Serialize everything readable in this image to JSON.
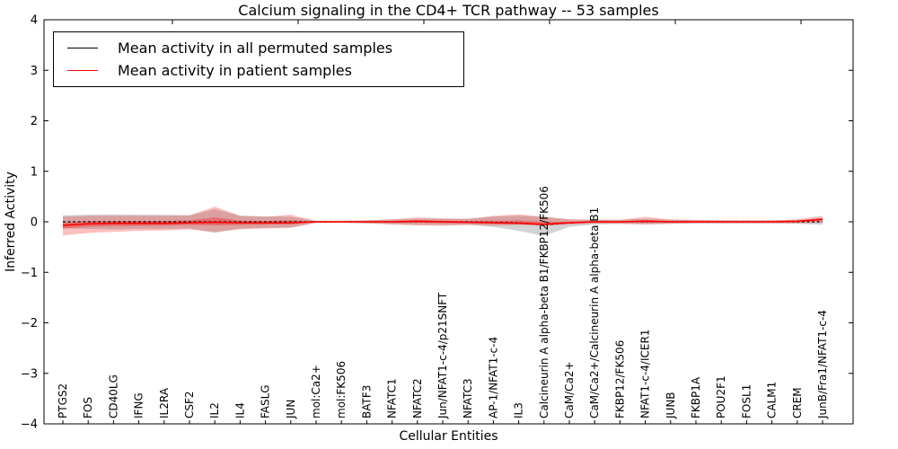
{
  "title": "Calcium signaling in the CD4+ TCR pathway -- 53 samples",
  "axes": {
    "y_label": "Inferred Activity",
    "x_label": "Cellular Entities",
    "y_ticks": [
      "4",
      "3",
      "2",
      "1",
      "0",
      "−1",
      "−2",
      "−3",
      "−4"
    ],
    "y_tick_values": [
      4,
      3,
      2,
      1,
      0,
      -1,
      -2,
      -3,
      -4
    ]
  },
  "legend": {
    "entries": [
      {
        "label": "Mean activity in all permuted samples",
        "color": "#000000"
      },
      {
        "label": "Mean activity in patient samples",
        "color": "#ff0000"
      }
    ]
  },
  "chart_data": {
    "type": "line",
    "title": "Calcium signaling in the CD4+ TCR pathway -- 53 samples",
    "xlabel": "Cellular Entities",
    "ylabel": "Inferred Activity",
    "ylim": [
      -4,
      4
    ],
    "grid": false,
    "legend_position": "upper left",
    "categories": [
      "PTGS2",
      "FOS",
      "CD40LG",
      "IFNG",
      "IL2RA",
      "CSF2",
      "IL2",
      "IL4",
      "FASLG",
      "JUN",
      "mol:Ca2+",
      "mol:FK506",
      "BATF3",
      "NFATC1",
      "NFATC2",
      "Jun/NFAT1-c-4/p21SNFT",
      "NFATC3",
      "AP-1/NFAT1-c-4",
      "IL3",
      "Calcineurin A alpha-beta B1/FKBP12/FK506",
      "CaM/Ca2+",
      "CaM/Ca2+/Calcineurin A alpha-beta B1",
      "FKBP12/FK506",
      "NFAT1-c-4/ICER1",
      "JUNB",
      "FKBP1A",
      "POU2F1",
      "FOSL1",
      "CALM1",
      "CREM",
      "JunB/Fra1/NFAT1-c-4"
    ],
    "series": [
      {
        "name": "Mean activity in all permuted samples",
        "color": "#000000",
        "style": "dashed",
        "values": [
          0,
          0,
          0,
          0,
          0,
          0,
          0,
          0,
          0,
          0,
          0,
          0,
          0,
          0,
          0,
          0,
          0,
          -0.01,
          -0.02,
          -0.06,
          -0.02,
          0,
          0,
          0,
          0,
          0,
          0,
          0,
          0,
          0,
          0
        ]
      },
      {
        "name": "Mean activity in patient samples",
        "color": "#ff0000",
        "style": "solid",
        "values": [
          -0.07,
          -0.04,
          -0.03,
          -0.03,
          -0.03,
          -0.02,
          -0.01,
          -0.02,
          -0.02,
          -0.02,
          0,
          0,
          0,
          0,
          0.01,
          0,
          -0.01,
          -0.02,
          -0.03,
          -0.05,
          -0.02,
          0,
          0,
          0.01,
          0,
          0,
          0,
          0,
          0,
          0.01,
          0.05
        ]
      }
    ],
    "bands": [
      {
        "name": "permuted-samples-range",
        "color": "#9e9e9e",
        "opacity": 0.45,
        "upper": [
          0.13,
          0.14,
          0.15,
          0.14,
          0.14,
          0.13,
          0.25,
          0.12,
          0.11,
          0.1,
          0.02,
          0.02,
          0.03,
          0.05,
          0.06,
          0.06,
          0.06,
          0.1,
          0.12,
          0.1,
          0.05,
          0.04,
          0.04,
          0.06,
          0.04,
          0.03,
          0.03,
          0.03,
          0.03,
          0.04,
          0.06
        ],
        "lower": [
          -0.13,
          -0.14,
          -0.15,
          -0.14,
          -0.14,
          -0.13,
          -0.22,
          -0.13,
          -0.12,
          -0.11,
          -0.02,
          -0.02,
          -0.03,
          -0.05,
          -0.06,
          -0.06,
          -0.06,
          -0.1,
          -0.18,
          -0.28,
          -0.1,
          -0.05,
          -0.04,
          -0.05,
          -0.04,
          -0.03,
          -0.03,
          -0.03,
          -0.03,
          -0.04,
          -0.06
        ]
      },
      {
        "name": "patient-samples-range",
        "color": "#f03030",
        "opacity": 0.3,
        "upper": [
          0.1,
          0.12,
          0.12,
          0.12,
          0.12,
          0.13,
          0.3,
          0.12,
          0.1,
          0.14,
          0.02,
          0.02,
          0.03,
          0.05,
          0.09,
          0.07,
          0.06,
          0.12,
          0.15,
          0.1,
          0.05,
          0.04,
          0.04,
          0.1,
          0.05,
          0.04,
          0.03,
          0.03,
          0.03,
          0.05,
          0.12
        ],
        "lower": [
          -0.27,
          -0.22,
          -0.2,
          -0.18,
          -0.17,
          -0.15,
          -0.2,
          -0.15,
          -0.13,
          -0.12,
          -0.02,
          -0.02,
          -0.03,
          -0.05,
          -0.07,
          -0.08,
          -0.06,
          -0.08,
          -0.06,
          -0.08,
          -0.05,
          -0.04,
          -0.04,
          -0.05,
          -0.04,
          -0.03,
          -0.03,
          -0.03,
          -0.03,
          -0.03,
          -0.02
        ]
      }
    ]
  }
}
